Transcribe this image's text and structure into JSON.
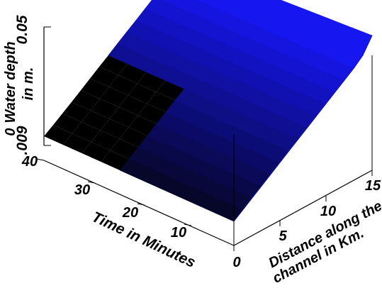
{
  "chart_data": {
    "type": "surface3d",
    "title": "",
    "z_axis": {
      "label_line1": "Water depth",
      "label_line2": "in m.",
      "ticks": [
        "0.05",
        ".009"
      ],
      "prefix": "0",
      "zlim": [
        0.009,
        0.05
      ]
    },
    "time_axis": {
      "label": "Time in Minutes",
      "ticks": [
        "40",
        "30",
        "20",
        "10"
      ],
      "range": [
        0,
        40
      ]
    },
    "distance_axis": {
      "label_line1": "Distance along the",
      "label_line2": "channel in Km.",
      "ticks": [
        "0",
        "5",
        "10",
        "15"
      ],
      "range": [
        0,
        15
      ]
    },
    "distance_km": [
      0,
      1,
      2,
      3,
      4,
      5,
      6,
      7,
      8,
      9,
      10,
      11,
      12,
      13,
      14,
      15
    ],
    "time_min": [
      0,
      4,
      8,
      12,
      16,
      20,
      24,
      28,
      32,
      36,
      40
    ],
    "depth_at_time0": [
      0.009,
      0.0115,
      0.014,
      0.0165,
      0.019,
      0.0215,
      0.024,
      0.0265,
      0.029,
      0.0315,
      0.034,
      0.0365,
      0.039,
      0.0415,
      0.0445,
      0.05
    ],
    "depth_at_time40": [
      0.009,
      0.0113,
      0.0137,
      0.0161,
      0.0186,
      0.0211,
      0.0236,
      0.026,
      0.0285,
      0.031,
      0.0334,
      0.0359,
      0.0384,
      0.0408,
      0.0433,
      0.0458
    ],
    "surface_colors": {
      "top": "#1616f0",
      "bottom": "#060624",
      "mesh_region": "#4a4a4a"
    }
  }
}
